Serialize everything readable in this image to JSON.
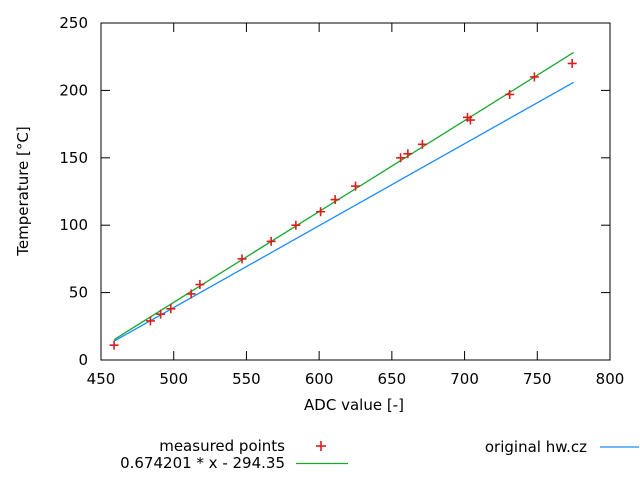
{
  "chart_data": {
    "type": "scatter",
    "title": "",
    "xlabel": "ADC value [-]",
    "ylabel": "Temperature [°C]",
    "xlim": [
      450,
      800
    ],
    "ylim": [
      0,
      250
    ],
    "xticks": [
      450,
      500,
      550,
      600,
      650,
      700,
      750,
      800
    ],
    "yticks": [
      0,
      50,
      100,
      150,
      200,
      250
    ],
    "grid": false,
    "border": true,
    "tick_style": "inward-mirrored",
    "legend_position": "below-plot",
    "axis_color": "#000000",
    "series": [
      {
        "name": "measured points",
        "type": "scatter",
        "marker": "plus",
        "color": "#dd1c1c",
        "points": [
          [
            459,
            11
          ],
          [
            484,
            29
          ],
          [
            491,
            34
          ],
          [
            498,
            38
          ],
          [
            512,
            49
          ],
          [
            518,
            56
          ],
          [
            547,
            75
          ],
          [
            567,
            88
          ],
          [
            584,
            100
          ],
          [
            601,
            110
          ],
          [
            611,
            119
          ],
          [
            625,
            129
          ],
          [
            656,
            150
          ],
          [
            661,
            153
          ],
          [
            671,
            160
          ],
          [
            702,
            180
          ],
          [
            704,
            178
          ],
          [
            731,
            197
          ],
          [
            748,
            210
          ],
          [
            774,
            220
          ]
        ]
      },
      {
        "name": "0.674201 * x - 294.35",
        "type": "line",
        "color": "#17a82c",
        "slope": 0.674201,
        "intercept": -294.35,
        "x_range": [
          459,
          775
        ]
      },
      {
        "name": "original hw.cz",
        "type": "line",
        "color": "#1a8cff",
        "points": [
          [
            459,
            14
          ],
          [
            775,
            206
          ]
        ]
      }
    ]
  }
}
